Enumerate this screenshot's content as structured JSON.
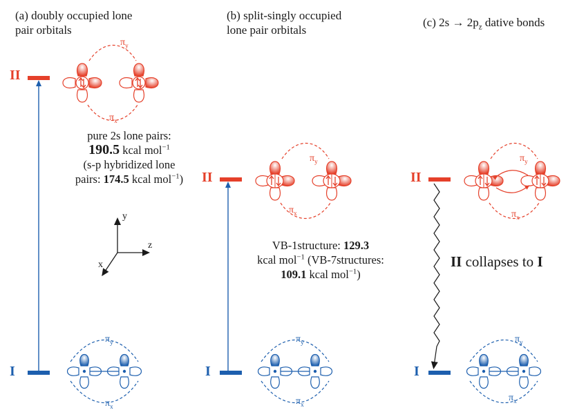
{
  "panels": {
    "a": {
      "title_line1": "(a) doubly occupied lone",
      "title_line2": "pair orbitals"
    },
    "b": {
      "title_line1": "(b) split-singly occupied",
      "title_line2": "lone pair orbitals"
    },
    "c": {
      "title_prefix": "(c) 2s ",
      "title_arrow": "→",
      "title_mid": " 2p",
      "title_sub": "z",
      "title_suffix": " dative bonds"
    }
  },
  "levels": {
    "upper": "II",
    "lower": "I"
  },
  "orbital_labels": {
    "pi_y": "π",
    "pi_y_sub": "y",
    "pi_x": "π",
    "pi_x_sub": "x"
  },
  "axes": {
    "x": "x",
    "y": "y",
    "z": "z"
  },
  "note_a": {
    "l1": "pure 2s lone pairs:",
    "l2_bold": "190.5",
    "l2_unit": " kcal mol",
    "l2_sup": "−1",
    "l3": "(s-p hybridized lone",
    "l4_pre": "pairs: ",
    "l4_bold": "174.5",
    "l4_unit": " kcal mol",
    "l4_sup": "−1",
    "l4_post": ")"
  },
  "note_b": {
    "l1_pre": "VB-1structure: ",
    "l1_bold": "129.3",
    "l2_pre": "kcal mol",
    "l2_sup": "−1",
    "l2_post": " (VB-7structures:",
    "l3_bold": "109.1",
    "l3_unit": " kcal mol",
    "l3_sup": "−1",
    "l3_post": ")"
  },
  "note_c": {
    "bold1": "II",
    "mid": " collapses to ",
    "bold2": "I"
  },
  "colors": {
    "red": "#e5402a",
    "blue": "#1d5fae",
    "text": "#1a1a1a"
  }
}
